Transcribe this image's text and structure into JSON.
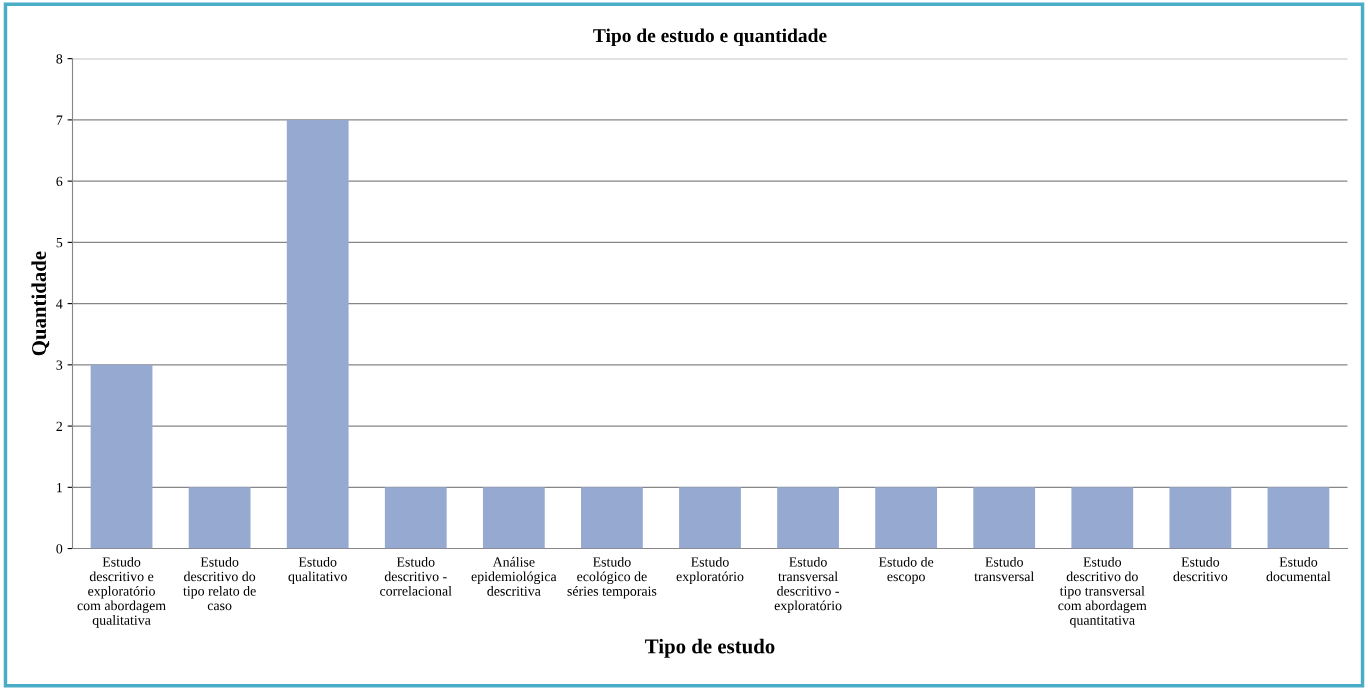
{
  "chart_data": {
    "type": "bar",
    "title": "Tipo de estudo e quantidade",
    "xlabel": "Tipo de estudo",
    "ylabel": "Quantidade",
    "categories": [
      "Estudo\ndescritivo e\nexploratório\ncom abordagem\nqualitativa",
      "Estudo\ndescritivo do\ntipo relato de\ncaso",
      "Estudo\nqualitativo",
      "Estudo\ndescritivo -\ncorrelacional",
      "Análise\nepidemiológica\ndescritiva",
      "Estudo\necológico de\nséries temporais",
      "Estudo\nexploratório",
      "Estudo\ntransversal\ndescritivo -\nexploratório",
      "Estudo de\nescopo",
      "Estudo\ntransversal",
      "Estudo\ndescritivo do\ntipo transversal\ncom abordagem\nquantitativa",
      "Estudo\ndescritivo",
      "Estudo\ndocumental"
    ],
    "values": [
      3,
      1,
      7,
      1,
      1,
      1,
      1,
      1,
      1,
      1,
      1,
      1,
      1
    ],
    "color": "#95a9d1",
    "ylim": [
      0,
      8
    ],
    "yticks": [
      0,
      1,
      2,
      3,
      4,
      5,
      6,
      7,
      8
    ],
    "grid": "y",
    "legend": false
  }
}
